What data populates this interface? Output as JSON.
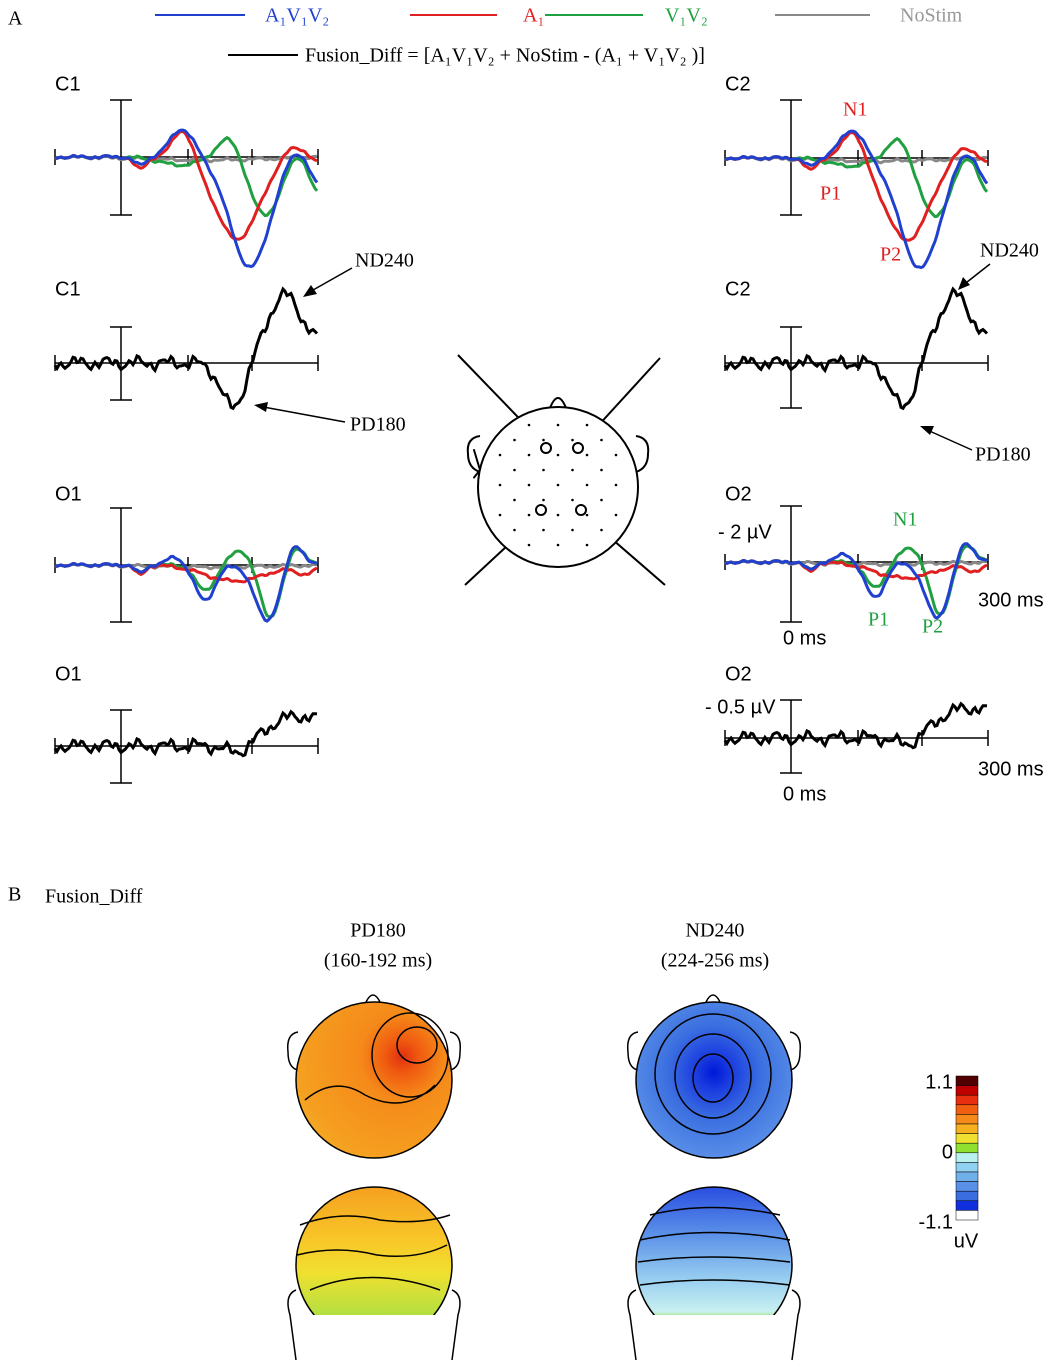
{
  "panel_a": {
    "label": "A",
    "legend": [
      "A₁V₁V₂",
      "A₁",
      "V₁V₂",
      "NoStim"
    ],
    "formula": "Fusion_Diff = [A₁V₁V₂  + NoStim - (A₁ + V₁V₂ )]",
    "plots": [
      {
        "label": "C1"
      },
      {
        "label": "C1",
        "annotations": [
          "ND240",
          "PD180"
        ]
      },
      {
        "label": "O1"
      },
      {
        "label": "O1"
      },
      {
        "label": "C2",
        "annotations": [
          "N1",
          "P1",
          "P2"
        ]
      },
      {
        "label": "C2",
        "annotations": [
          "ND240",
          "PD180"
        ]
      },
      {
        "label": "O2",
        "annotations": [
          "N1",
          "P1",
          "P2"
        ],
        "scale": "- 2 µV",
        "time_start": "0 ms",
        "time_end": "300 ms"
      },
      {
        "label": "O2",
        "scale": "- 0.5 µV",
        "time_start": "0 ms",
        "time_end": "300 ms"
      }
    ]
  },
  "panel_b": {
    "label": "B",
    "title": "Fusion_Diff",
    "maps": [
      {
        "name": "PD180",
        "window": "(160-192 ms)"
      },
      {
        "name": "ND240",
        "window": "(224-256 ms)"
      }
    ],
    "colorbar": {
      "max": "1.1",
      "mid": "0",
      "min": "-1.1",
      "unit": "uV"
    }
  }
}
